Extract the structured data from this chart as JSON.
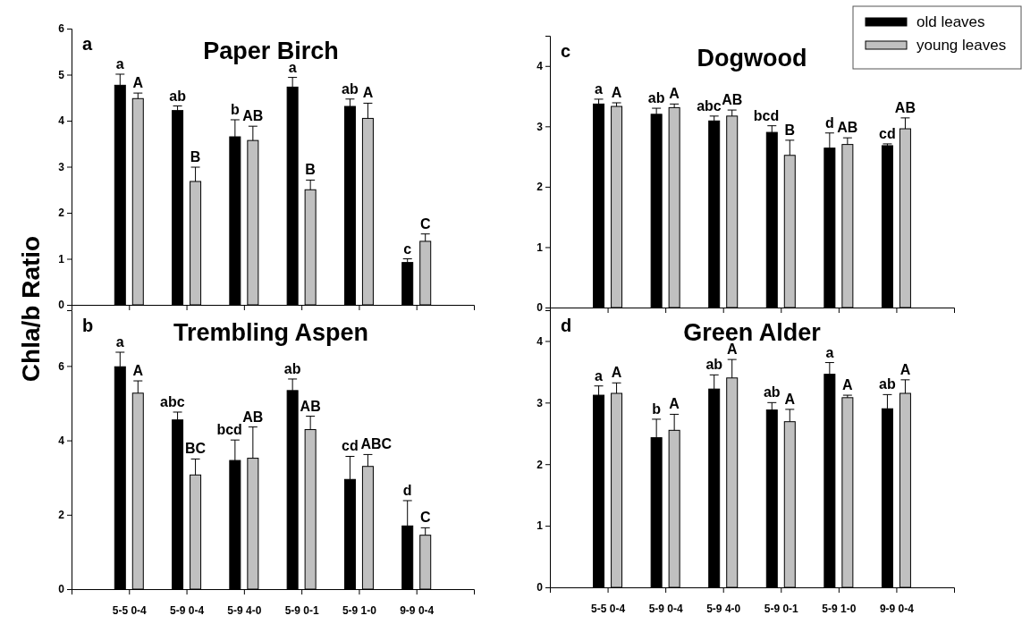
{
  "chart_data": [
    {
      "type": "bar",
      "title": "Paper Birch",
      "ylabel": "Chla/b Ratio",
      "categories": [
        null,
        null,
        null,
        null,
        null,
        null
      ],
      "ylim": [
        0,
        6
      ],
      "yticks": [
        0,
        1,
        2,
        3,
        4,
        5,
        6
      ],
      "legend": false,
      "series": [
        {
          "color": "#000000",
          "values": [
            4.77,
            4.22,
            3.65,
            4.73,
            4.31,
            0.92
          ],
          "errors": [
            0.24,
            0.1,
            0.37,
            0.21,
            0.16,
            0.08
          ],
          "value_labels": [
            "a",
            "ab",
            "b",
            "a",
            "ab",
            "c"
          ]
        },
        {
          "color": "#c0c0c0",
          "values": [
            4.48,
            2.68,
            3.57,
            2.5,
            4.05,
            1.38
          ],
          "errors": [
            0.12,
            0.31,
            0.31,
            0.21,
            0.33,
            0.16
          ],
          "value_labels": [
            "A",
            "B",
            "AB",
            "B",
            "A",
            "C"
          ]
        }
      ],
      "annotations": [
        "a"
      ]
    },
    {
      "type": "bar",
      "title": "Trembling Aspen",
      "categories": [
        "5-5 0-4",
        "5-9 0-4",
        "5-9 4-0",
        "5-9 0-1",
        "5-9 1-0",
        "9-9 0-4"
      ],
      "ylim": [
        0,
        7.5
      ],
      "yticks": [
        0,
        2,
        4,
        6
      ],
      "legend": false,
      "series": [
        {
          "color": "#000000",
          "values": [
            5.98,
            4.55,
            3.46,
            5.34,
            2.95,
            1.7
          ],
          "errors": [
            0.39,
            0.21,
            0.55,
            0.31,
            0.62,
            0.68
          ],
          "value_labels": [
            "a",
            "abc",
            "bcd",
            "ab",
            "cd",
            "d"
          ]
        },
        {
          "color": "#c0c0c0",
          "values": [
            5.27,
            3.07,
            3.52,
            4.29,
            3.3,
            1.45
          ],
          "errors": [
            0.33,
            0.43,
            0.84,
            0.36,
            0.32,
            0.2
          ],
          "value_labels": [
            "A",
            "BC",
            "AB",
            "AB",
            "ABC",
            "C"
          ]
        }
      ],
      "annotations": [
        "b"
      ]
    },
    {
      "type": "bar",
      "title": "Dogwood",
      "categories": [
        null,
        null,
        null,
        null,
        null,
        null
      ],
      "ylim": [
        0,
        4.5
      ],
      "yticks": [
        0,
        1,
        2,
        3,
        4
      ],
      "legend": "top right",
      "series": [
        {
          "name": "old leaves",
          "color": "#000000",
          "values": [
            3.37,
            3.2,
            3.09,
            2.9,
            2.64,
            2.68
          ],
          "errors": [
            0.08,
            0.1,
            0.08,
            0.11,
            0.25,
            0.03
          ],
          "value_labels": [
            "a",
            "ab",
            "abc",
            "bcd",
            "d",
            "cd"
          ]
        },
        {
          "name": "young leaves",
          "color": "#c0c0c0",
          "values": [
            3.33,
            3.31,
            3.17,
            2.52,
            2.7,
            2.96
          ],
          "errors": [
            0.06,
            0.06,
            0.1,
            0.25,
            0.11,
            0.18
          ],
          "value_labels": [
            "A",
            "A",
            "AB",
            "B",
            "AB",
            "AB"
          ]
        }
      ],
      "annotations": [
        "c"
      ]
    },
    {
      "type": "bar",
      "title": "Green Alder",
      "categories": [
        "5-5 0-4",
        "5-9 0-4",
        "5-9 4-0",
        "5-9 0-1",
        "5-9 1-0",
        "9-9 0-4"
      ],
      "ylim": [
        0,
        4.5
      ],
      "yticks": [
        0,
        1,
        2,
        3,
        4
      ],
      "legend": false,
      "series": [
        {
          "color": "#000000",
          "values": [
            3.12,
            2.43,
            3.22,
            2.88,
            3.46,
            2.9
          ],
          "errors": [
            0.15,
            0.3,
            0.23,
            0.12,
            0.19,
            0.23
          ],
          "value_labels": [
            "a",
            "b",
            "ab",
            "ab",
            "a",
            "ab"
          ]
        },
        {
          "color": "#c0c0c0",
          "values": [
            3.15,
            2.55,
            3.4,
            2.69,
            3.08,
            3.15
          ],
          "errors": [
            0.17,
            0.26,
            0.3,
            0.2,
            0.04,
            0.22
          ],
          "value_labels": [
            "A",
            "A",
            "A",
            "A",
            "A",
            "A"
          ]
        }
      ],
      "annotations": [
        "d"
      ]
    }
  ]
}
